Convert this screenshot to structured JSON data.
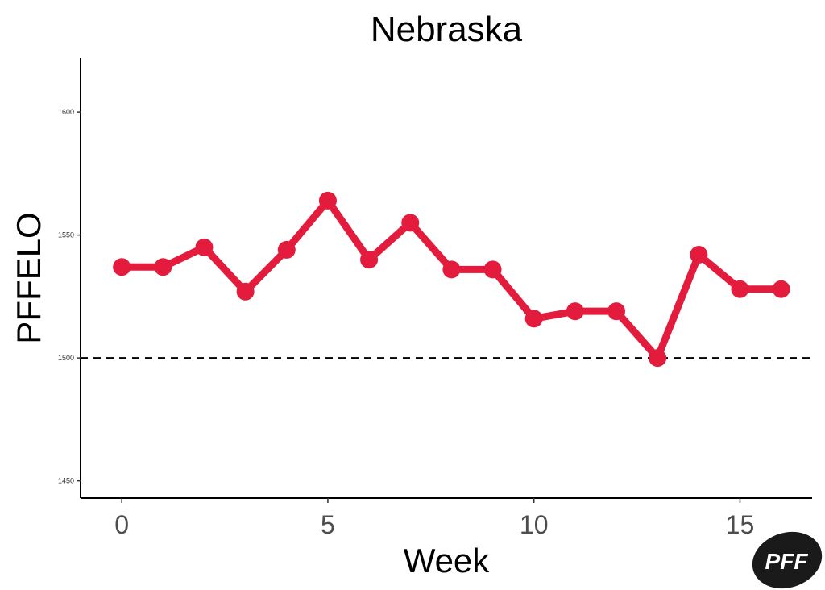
{
  "chart_data": {
    "type": "line",
    "title": "Nebraska",
    "xlabel": "Week",
    "ylabel": "PFFELO",
    "x": [
      0,
      1,
      2,
      3,
      4,
      5,
      6,
      7,
      8,
      9,
      10,
      11,
      12,
      13,
      14,
      15,
      16
    ],
    "series": [
      {
        "values": [
          1537,
          1537,
          1545,
          1527,
          1544,
          1564,
          1540,
          1555,
          1536,
          1536,
          1516,
          1519,
          1519,
          1500,
          1542,
          1528,
          1528
        ]
      }
    ],
    "xlim": [
      -1,
      16.75
    ],
    "ylim": [
      1443,
      1622
    ],
    "xticks": [
      0,
      5,
      10,
      15
    ],
    "xtick_labels": [
      "0",
      "5",
      "10",
      "15"
    ],
    "yticks": [
      1450,
      1500,
      1550,
      1600
    ],
    "ytick_labels": [
      "1450",
      "1500",
      "1550",
      "1600"
    ],
    "reference_line": {
      "y": 1500,
      "style": "dashed",
      "color": "#000000"
    },
    "line_color": "#e31c3d",
    "grid": false,
    "legend": "none"
  },
  "logo": {
    "text": "PFF",
    "color": "#1a1a1a"
  }
}
